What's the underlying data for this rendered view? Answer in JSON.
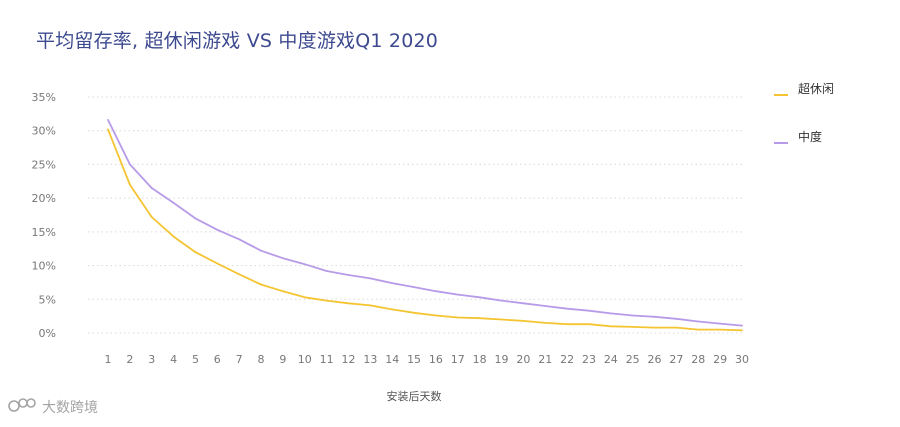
{
  "title": "平均留存率, 超休闲游戏 VS 中度游戏Q1 2020",
  "watermark": {
    "text": "大数跨境",
    "icon": "brand-logo-icon"
  },
  "colors": {
    "casual": "#f4c431",
    "midcore": "#b79ae8",
    "grid": "#d9d9d9",
    "title": "#3d4a8f"
  },
  "chart_data": {
    "type": "line",
    "title": "平均留存率, 超休闲游戏 VS 中度游戏Q1 2020",
    "xlabel": "安装后天数",
    "ylabel": "",
    "x": [
      1,
      2,
      3,
      4,
      5,
      6,
      7,
      8,
      9,
      10,
      11,
      12,
      13,
      14,
      15,
      16,
      17,
      18,
      19,
      20,
      21,
      22,
      23,
      24,
      25,
      26,
      27,
      28,
      29,
      30
    ],
    "x_ticks": [
      1,
      2,
      3,
      4,
      5,
      6,
      7,
      8,
      9,
      10,
      11,
      12,
      13,
      14,
      15,
      16,
      17,
      18,
      19,
      20,
      21,
      22,
      23,
      24,
      25,
      26,
      27,
      28,
      29,
      30
    ],
    "y_ticks": [
      "0%",
      "5%",
      "10%",
      "15%",
      "20%",
      "25%",
      "30%",
      "35%"
    ],
    "ylim": [
      0,
      35
    ],
    "grid": "horizontal dotted",
    "legend_position": "right",
    "series": [
      {
        "name": "超休闲",
        "color": "#f4c431",
        "values": [
          30.2,
          22.0,
          17.2,
          14.3,
          12.0,
          10.3,
          8.7,
          7.2,
          6.2,
          5.3,
          4.8,
          4.4,
          4.1,
          3.5,
          3.0,
          2.6,
          2.3,
          2.2,
          2.0,
          1.8,
          1.5,
          1.3,
          1.3,
          1.0,
          0.9,
          0.8,
          0.8,
          0.5,
          0.5,
          0.4
        ]
      },
      {
        "name": "中度",
        "color": "#b79ae8",
        "values": [
          31.6,
          25.0,
          21.5,
          19.3,
          17.0,
          15.3,
          13.9,
          12.2,
          11.1,
          10.2,
          9.2,
          8.6,
          8.1,
          7.4,
          6.8,
          6.2,
          5.7,
          5.3,
          4.8,
          4.4,
          4.0,
          3.6,
          3.3,
          2.9,
          2.6,
          2.4,
          2.1,
          1.7,
          1.4,
          1.1
        ]
      }
    ]
  }
}
